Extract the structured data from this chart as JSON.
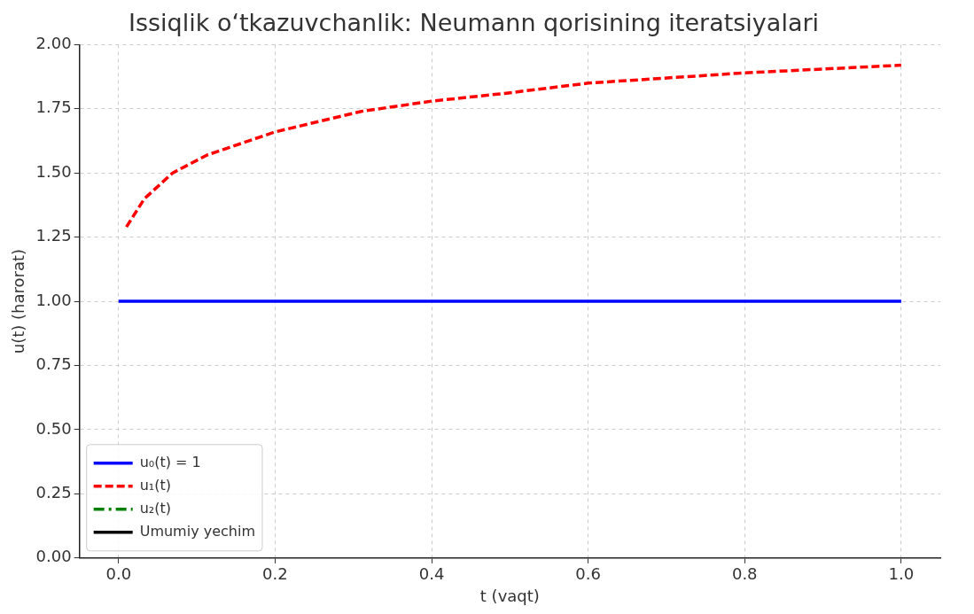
{
  "chart_data": {
    "type": "line",
    "title": "Issiqlik o‘tkazuvchanlik: Neumann qorisining iteratsiyalari",
    "xlabel": "t (vaqt)",
    "ylabel": "u(t) (harorat)",
    "xlim": [
      -0.05,
      1.05
    ],
    "xticks": [
      {
        "value": 0,
        "label": "0.0"
      },
      0.2,
      0.4,
      0.6,
      0.8,
      {
        "value": 1,
        "label": "1.0"
      }
    ],
    "ylim": [
      0,
      2
    ],
    "yticks": [
      {
        "value": 0,
        "label": "0.00"
      },
      0.25,
      {
        "value": 0.5,
        "label": "0.50"
      },
      0.75,
      {
        "value": 1,
        "label": "1.00"
      },
      1.25,
      {
        "value": 1.5,
        "label": "1.50"
      },
      1.75,
      {
        "value": 2,
        "label": "2.00"
      }
    ],
    "grid": true,
    "legend": "bottom left",
    "marker": "none",
    "series": [
      {
        "name": "u₀(t) = 1",
        "color": "#0000ff",
        "line_style": "solid",
        "x": [
          0,
          1
        ],
        "values": [
          1,
          1
        ]
      },
      {
        "name": "u₁(t)",
        "color": "#ff0000",
        "line_style": "dashed",
        "x": [
          0.01,
          0.033,
          0.069,
          0.113,
          0.2,
          0.31,
          0.4,
          0.493,
          0.6,
          0.8,
          1.0
        ],
        "values": [
          1.29,
          1.4,
          1.5,
          1.57,
          1.66,
          1.74,
          1.78,
          1.81,
          1.85,
          1.89,
          1.92
        ]
      },
      {
        "name": "u₂(t)",
        "color": "#008000",
        "line_style": "dashdot"
      },
      {
        "name": "Umumiy yechim",
        "color": "#000000",
        "line_style": "solid"
      }
    ]
  }
}
